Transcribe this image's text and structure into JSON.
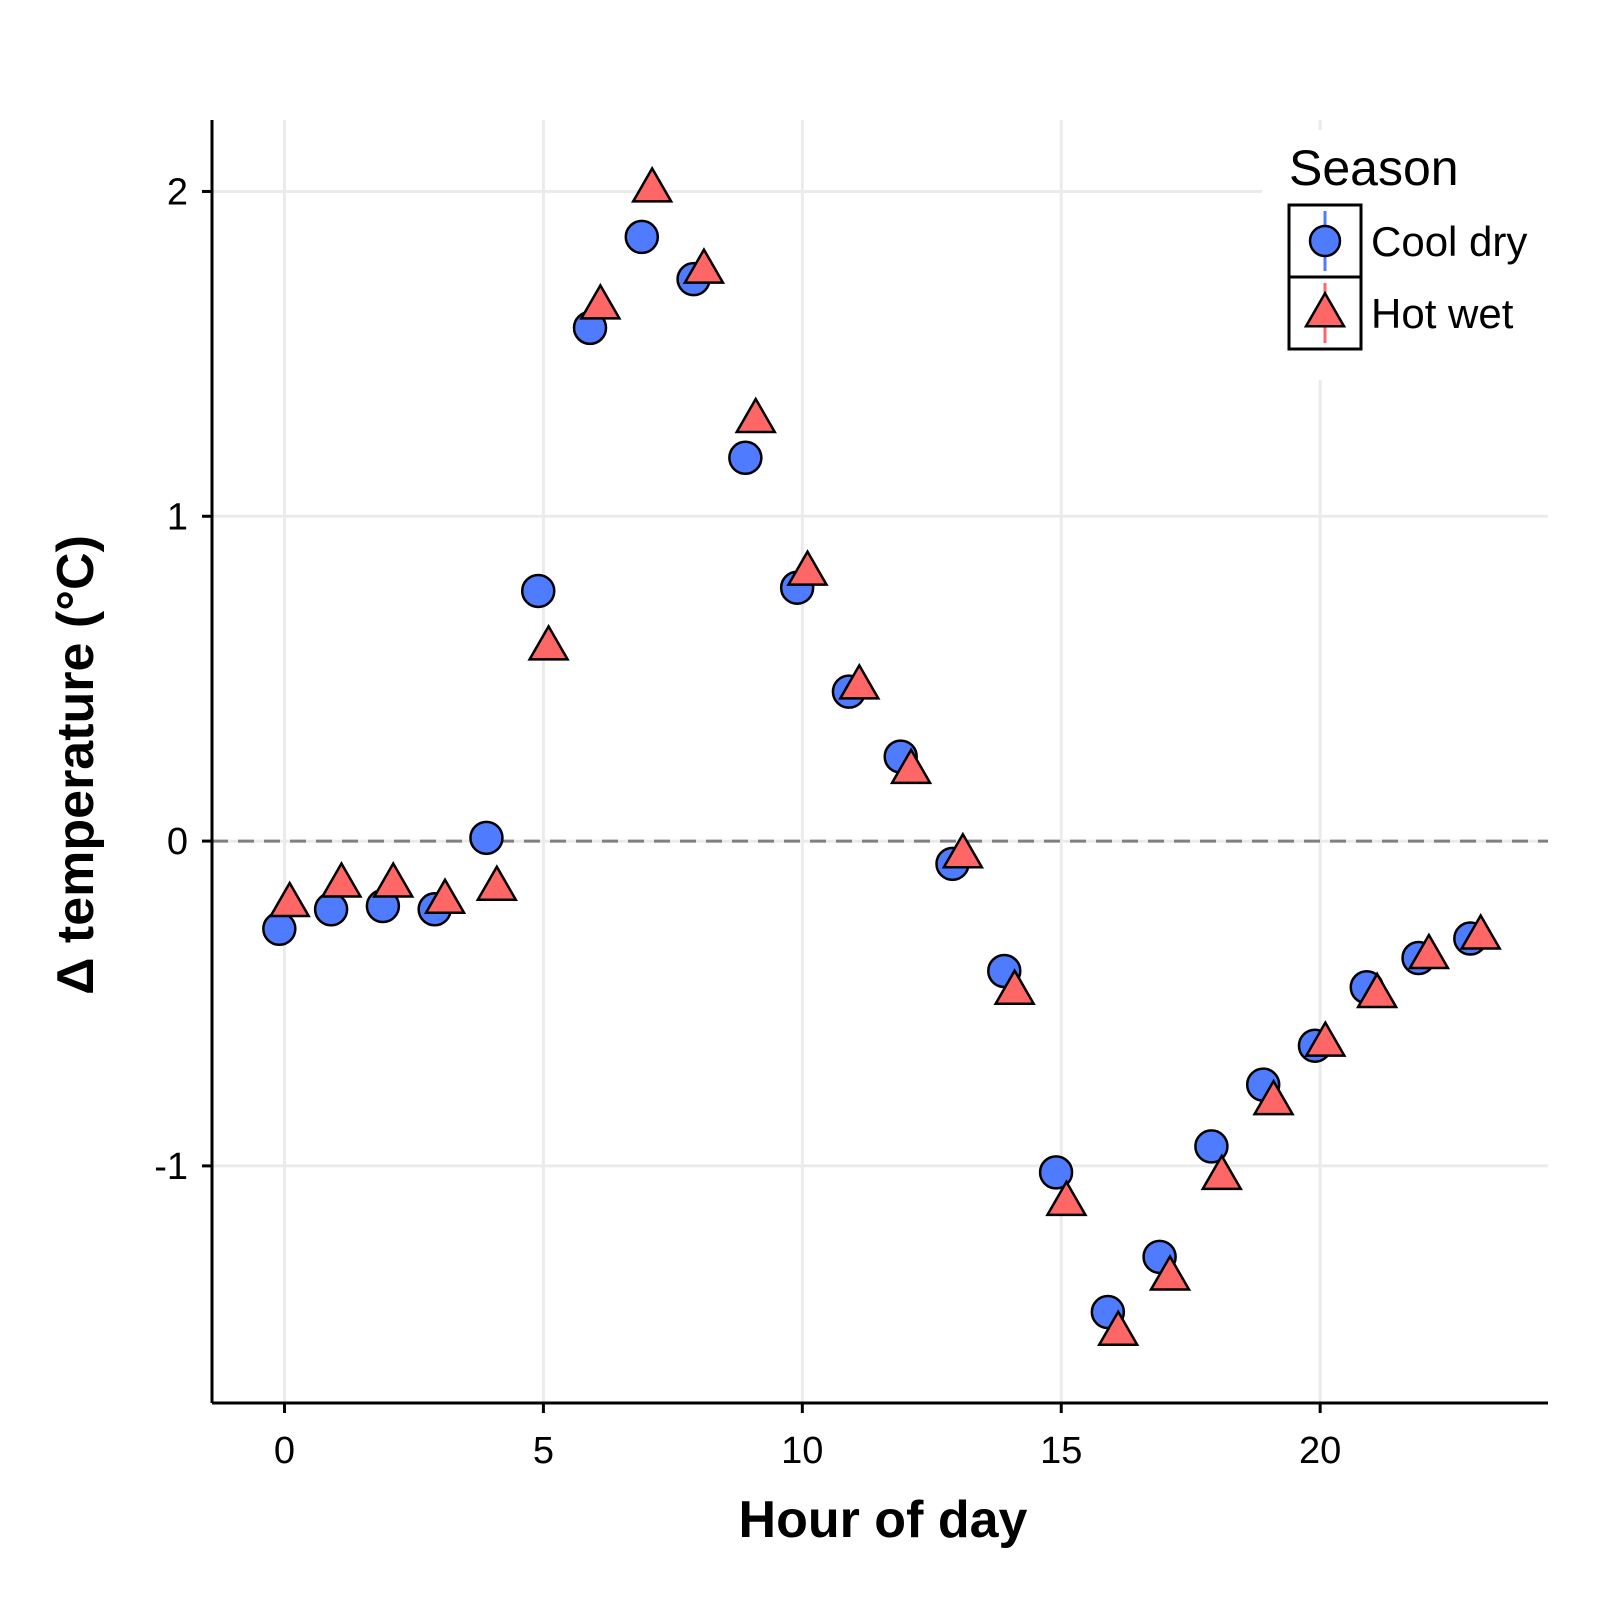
{
  "chart_data": {
    "type": "scatter",
    "xlabel": "Hour of day",
    "ylabel": "Δ temperature (°C)",
    "xlim": [
      -1.4,
      24.4
    ],
    "ylim": [
      -1.73,
      2.22
    ],
    "xticks": [
      0,
      5,
      10,
      15,
      20
    ],
    "yticks": [
      -1,
      0,
      1,
      2
    ],
    "xtick_labels": [
      "0",
      "5",
      "10",
      "15",
      "20"
    ],
    "ytick_labels": [
      "-1",
      "0",
      "1",
      "2"
    ],
    "reference_line": {
      "y": 0,
      "style": "dashed",
      "color": "#808080"
    },
    "grid": true,
    "legend": {
      "title": "Season",
      "position": "top-right"
    },
    "series": [
      {
        "name": "Cool dry",
        "marker": "circle",
        "color": "#4F7BFF",
        "x": [
          0,
          1,
          2,
          3,
          4,
          5,
          6,
          7,
          8,
          9,
          10,
          11,
          12,
          13,
          14,
          15,
          16,
          17,
          18,
          19,
          20,
          21,
          22,
          23
        ],
        "y": [
          -0.27,
          -0.21,
          -0.2,
          -0.21,
          0.01,
          0.77,
          1.58,
          1.86,
          1.73,
          1.18,
          0.78,
          0.46,
          0.26,
          -0.07,
          -0.4,
          -1.02,
          -1.45,
          -1.28,
          -0.94,
          -0.75,
          -0.63,
          -0.45,
          -0.36,
          -0.3
        ]
      },
      {
        "name": "Hot wet",
        "marker": "triangle",
        "color": "#FF6666",
        "x": [
          0,
          1,
          2,
          3,
          4,
          5,
          6,
          7,
          8,
          9,
          10,
          11,
          12,
          13,
          14,
          15,
          16,
          17,
          18,
          19,
          20,
          21,
          22,
          23
        ],
        "y": [
          -0.19,
          -0.13,
          -0.13,
          -0.18,
          -0.14,
          0.6,
          1.65,
          2.01,
          1.76,
          1.3,
          0.83,
          0.48,
          0.22,
          -0.04,
          -0.46,
          -1.11,
          -1.51,
          -1.34,
          -1.03,
          -0.8,
          -0.62,
          -0.47,
          -0.35,
          -0.29
        ]
      }
    ]
  }
}
